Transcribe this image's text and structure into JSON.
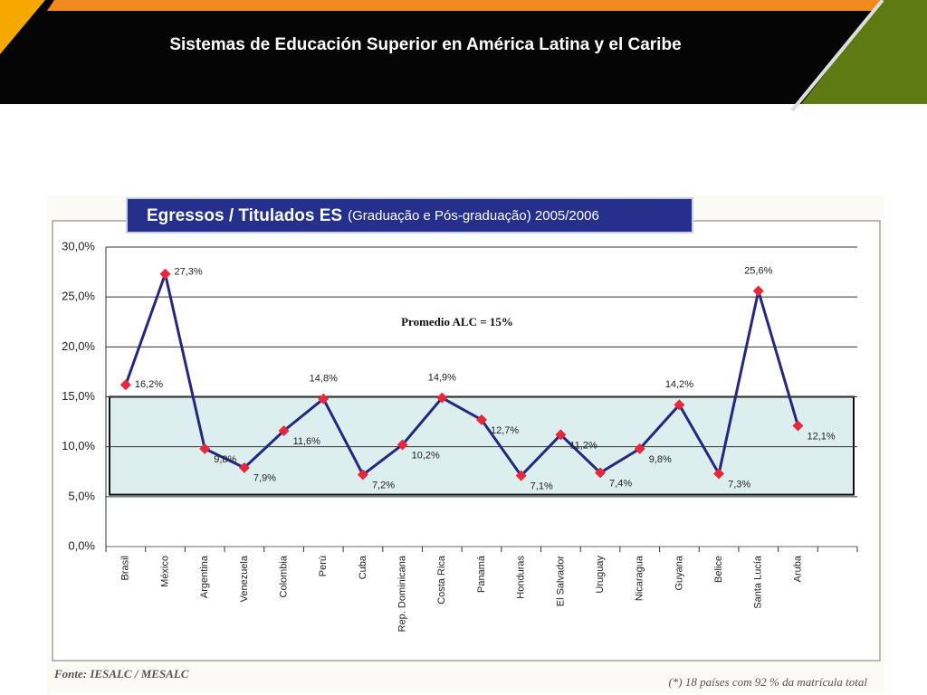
{
  "header": {
    "title": "Sistemas de Educación Superior en América Latina y el Caribe"
  },
  "chart_data": {
    "type": "line",
    "title": "Egressos / Titulados ES",
    "subtitle": "(Graduação e Pós-graduação) 2005/2006",
    "annotation": "Promedio ALC = 15%",
    "categories": [
      "Brasil",
      "México",
      "Argentina",
      "Venezuela",
      "Colombia",
      "Perú",
      "Cuba",
      "Rep. Dominicana",
      "Costa Rica",
      "Panamá",
      "Honduras",
      "El Salvador",
      "Uruguay",
      "Nicaragua",
      "Guyana",
      "Belice",
      "Santa Lucía",
      "Aruba"
    ],
    "values": [
      16.2,
      27.3,
      9.8,
      7.9,
      11.6,
      14.8,
      7.2,
      10.2,
      14.9,
      12.7,
      7.1,
      11.2,
      7.4,
      9.8,
      14.2,
      7.3,
      25.6,
      12.1
    ],
    "value_labels": [
      "16,2%",
      "27,3%",
      "9,8%",
      "7,9%",
      "11,6%",
      "14,8%",
      "7,2%",
      "10,2%",
      "14,9%",
      "12,7%",
      "7,1%",
      "11,2%",
      "7,4%",
      "9,8%",
      "14,2%",
      "7,3%",
      "25,6%",
      "12,1%"
    ],
    "color": "#23277f",
    "marker_color": "#e8283a",
    "highlight_range": [
      5.2,
      15
    ],
    "ylim": [
      0,
      30
    ],
    "yticks": [
      {
        "value": 0,
        "label": "0,0%"
      },
      {
        "value": 5,
        "label": "5,0%"
      },
      {
        "value": 10,
        "label": "10,0%"
      },
      {
        "value": 15,
        "label": "15,0%"
      },
      {
        "value": 20,
        "label": "20,0%"
      },
      {
        "value": 25,
        "label": "25,0%"
      },
      {
        "value": 30,
        "label": "30,0%"
      }
    ],
    "grid": true,
    "source": "Fonte: IESALC / MESALC",
    "note": "(*) 18 países com 92 % da matrícula total"
  }
}
